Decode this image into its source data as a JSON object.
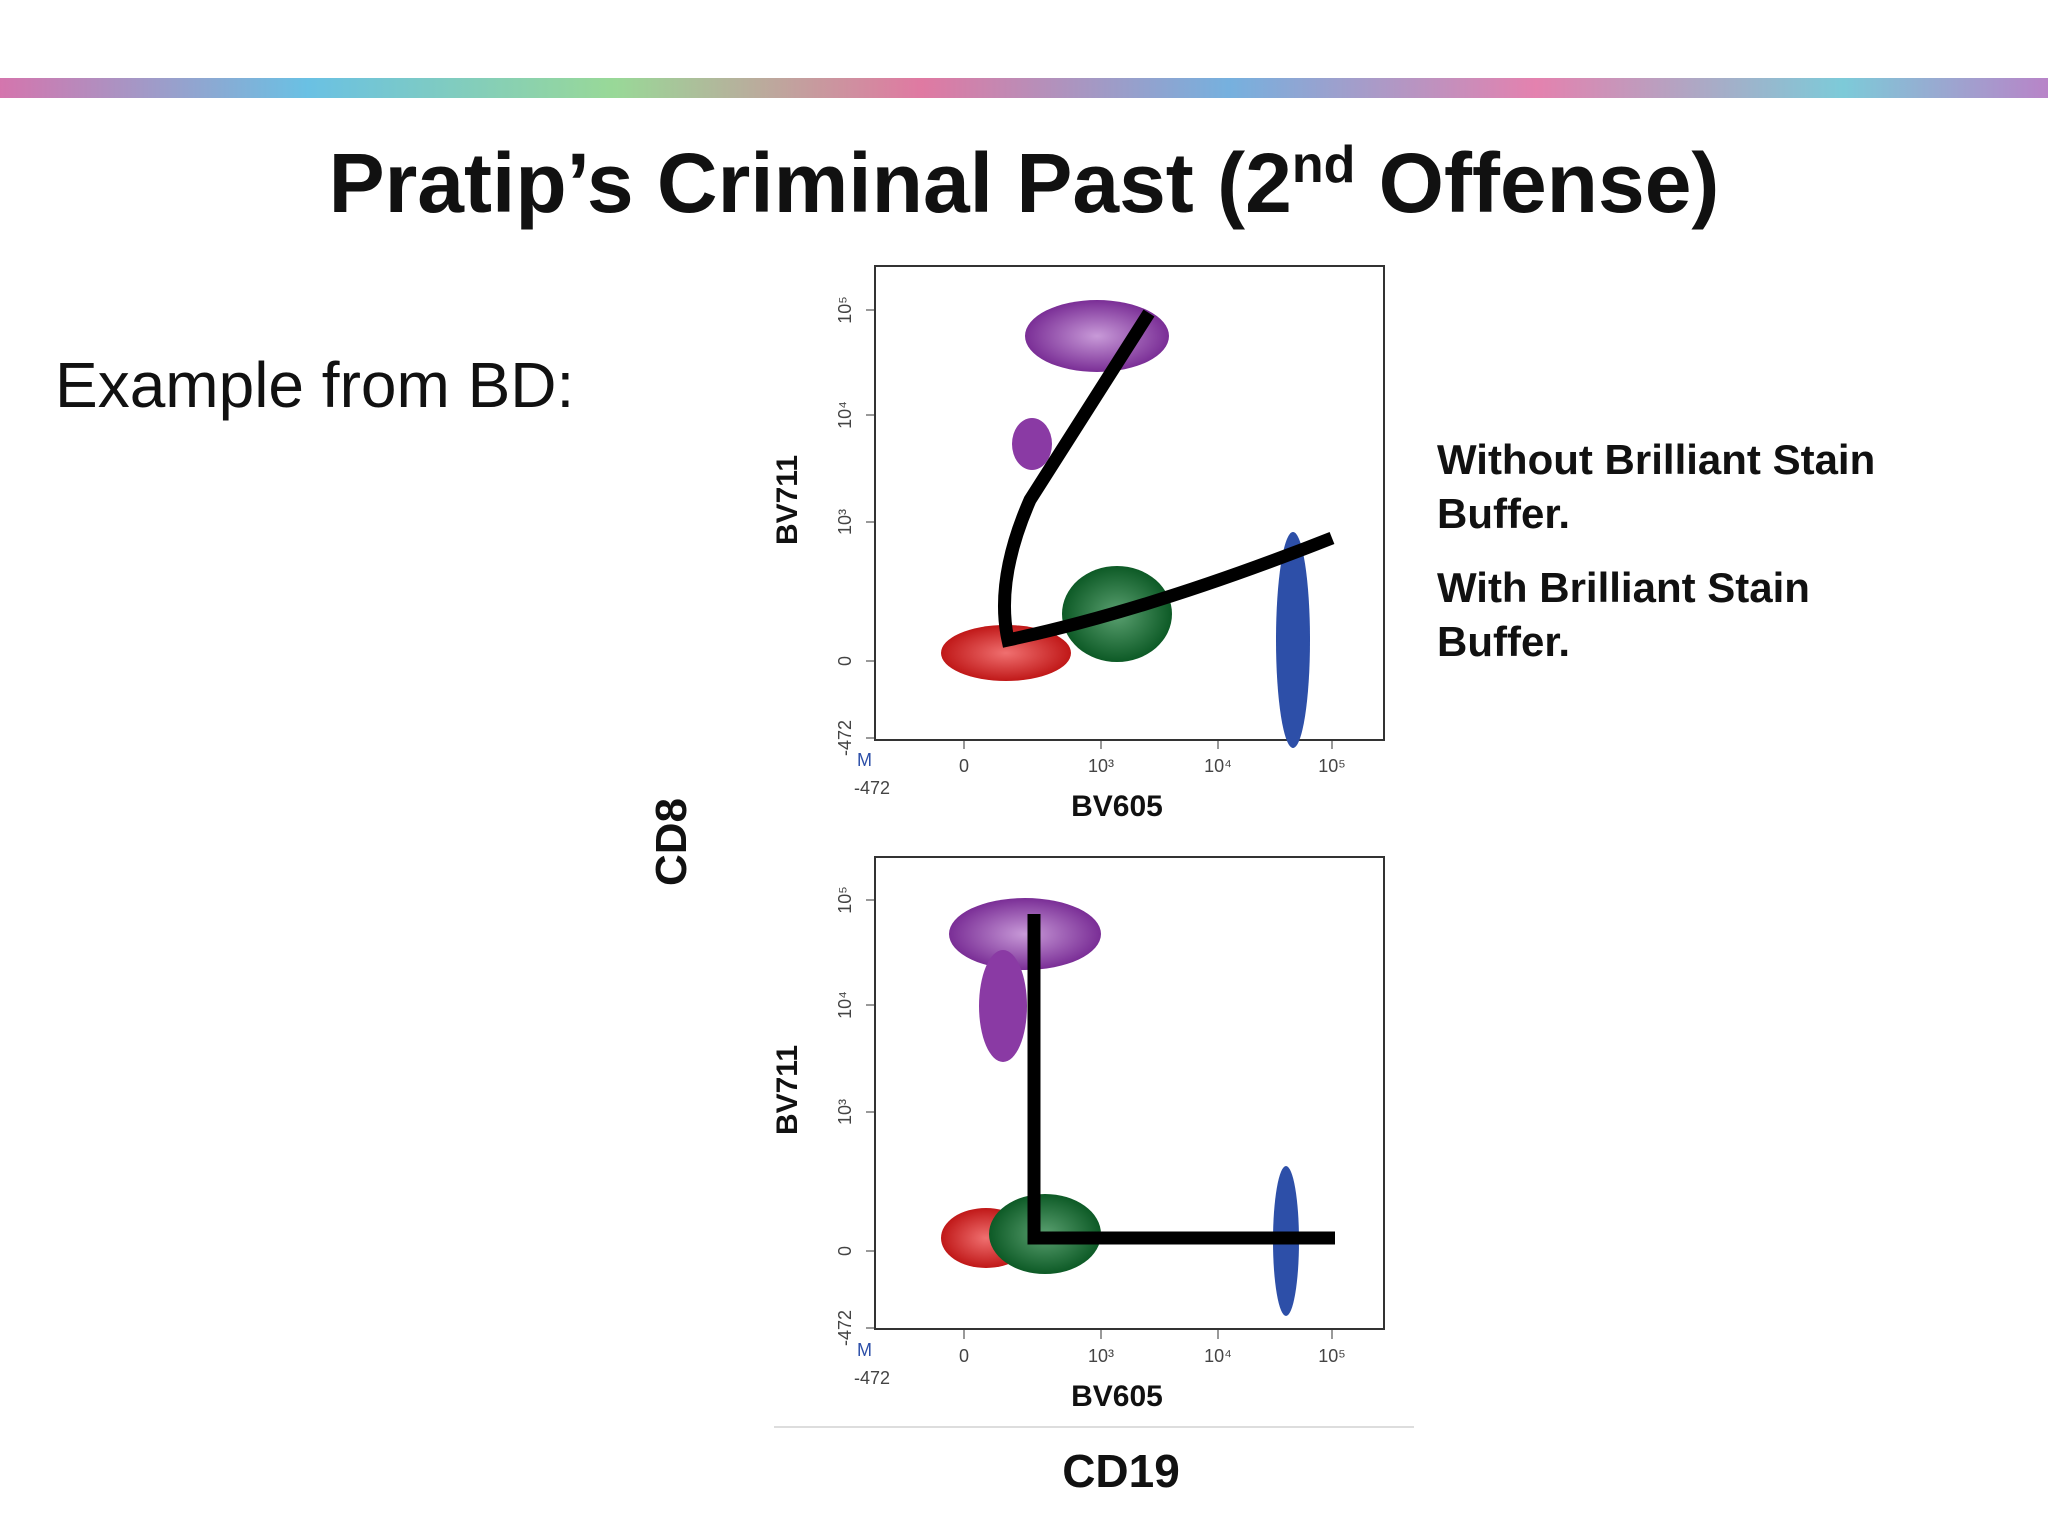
{
  "title": {
    "before": "Pratip’s Criminal Past (2",
    "sup": "nd",
    "after": " Offense)"
  },
  "intro": "Example from BD:",
  "plots": [
    {
      "y_label": "BV711",
      "x_label": "BV605",
      "y_ticks": [
        "10⁵",
        "10⁴",
        "10³",
        "0",
        "-472"
      ],
      "x_ticks": [
        "0",
        "10³",
        "10⁴",
        "10⁵"
      ],
      "corner": "M",
      "x_min": "-472",
      "caption": [
        "Without Brilliant Stain",
        "Buffer."
      ]
    },
    {
      "y_label": "BV711",
      "x_label": "BV605",
      "y_ticks": [
        "10⁵",
        "10⁴",
        "10³",
        "0",
        "-472"
      ],
      "x_ticks": [
        "0",
        "10³",
        "10⁴",
        "10⁵"
      ],
      "corner": "M",
      "x_min": "-472",
      "caption": [
        "With Brilliant Stain",
        "Buffer."
      ]
    }
  ],
  "y_axis": "CD8",
  "x_axis": "CD19"
}
